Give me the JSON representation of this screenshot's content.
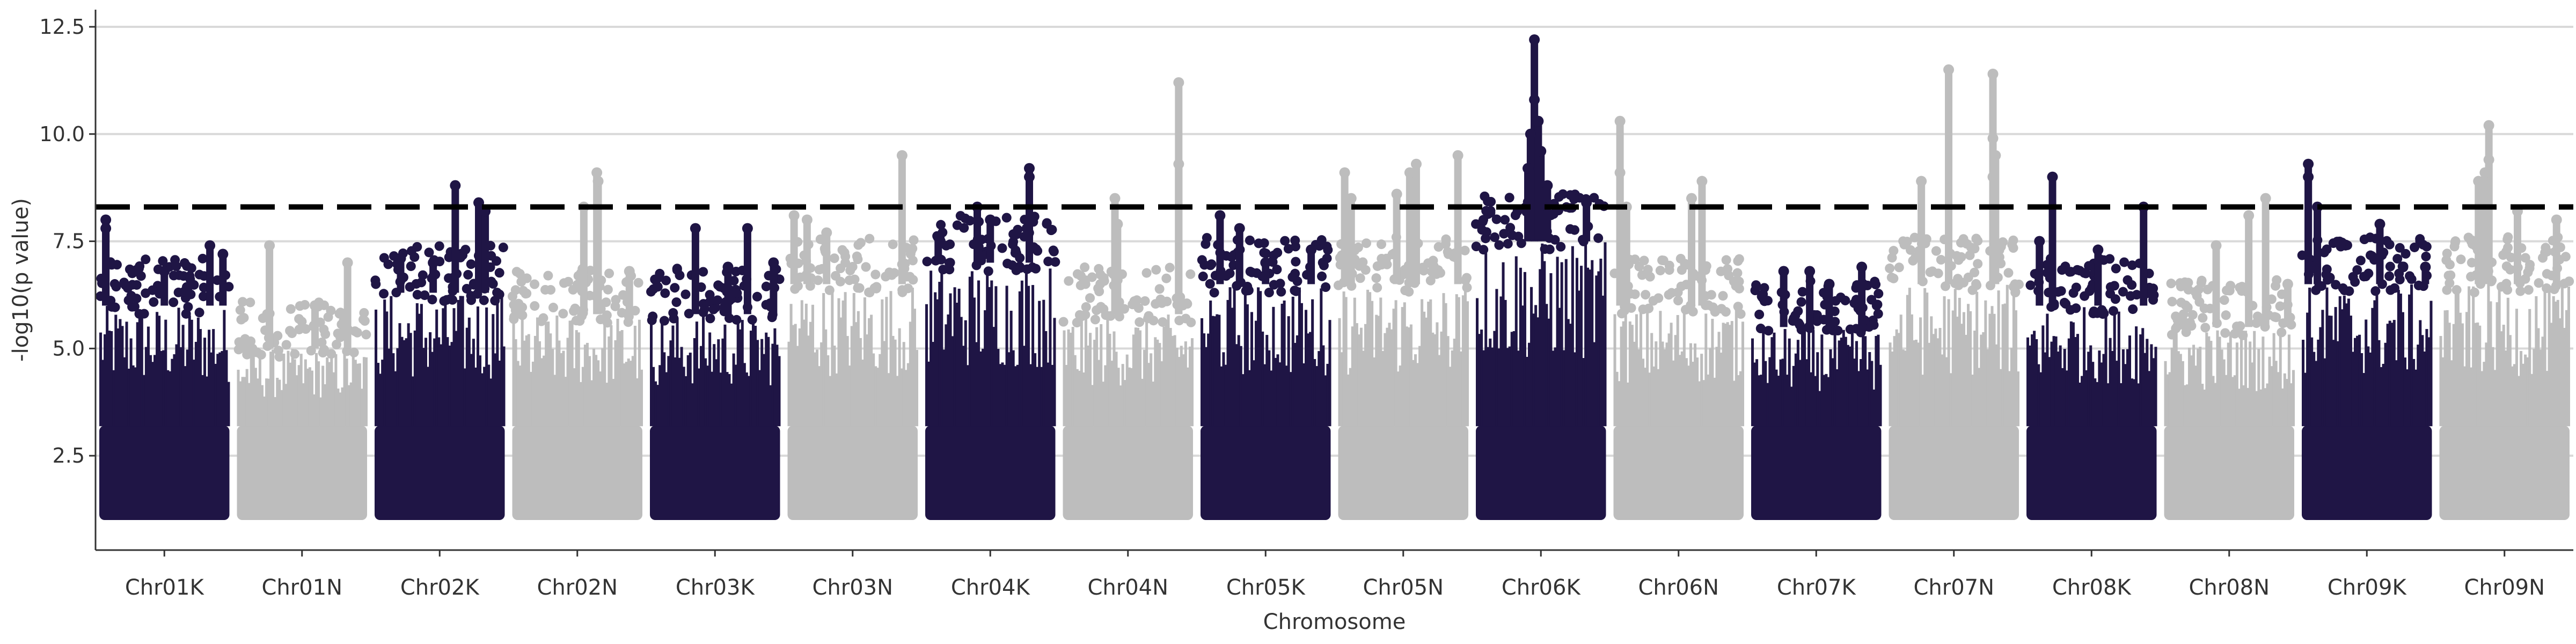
{
  "chart_data": {
    "type": "scatter",
    "subtype": "manhattan",
    "title": "",
    "xlabel": "Chromosome",
    "ylabel": "-log10(p value)",
    "ylim": [
      0,
      12.5
    ],
    "yticks": [
      2.5,
      5.0,
      7.5,
      10.0,
      12.5
    ],
    "ytick_labels": [
      "2.5",
      "5.0",
      "7.5",
      "10.0",
      "12.5"
    ],
    "grid": "horizontal",
    "legend": "none",
    "threshold": 8.3,
    "colors": {
      "dark": "#1f1545",
      "light": "#bdbdbd",
      "threshold": "#000000",
      "grid": "#d9d9d9"
    },
    "categories": [
      "Chr01K",
      "Chr01N",
      "Chr02K",
      "Chr02N",
      "Chr03K",
      "Chr03N",
      "Chr04K",
      "Chr04N",
      "Chr05K",
      "Chr05N",
      "Chr06K",
      "Chr06N",
      "Chr07K",
      "Chr07N",
      "Chr08K",
      "Chr08N",
      "Chr09K",
      "Chr09N"
    ],
    "series": [
      {
        "category": "Chr01K",
        "color": "dark",
        "base_max": 6.0,
        "peaks": [
          [
            0.05,
            8.0
          ],
          [
            0.05,
            7.8
          ],
          [
            0.85,
            7.4
          ],
          [
            0.95,
            7.2
          ],
          [
            0.5,
            6.8
          ]
        ]
      },
      {
        "category": "Chr01N",
        "color": "light",
        "base_max": 5.0,
        "peaks": [
          [
            0.25,
            7.4
          ],
          [
            0.85,
            7.0
          ],
          [
            0.6,
            6.0
          ]
        ]
      },
      {
        "category": "Chr02K",
        "color": "dark",
        "base_max": 6.3,
        "peaks": [
          [
            0.62,
            8.8
          ],
          [
            0.8,
            8.4
          ],
          [
            0.85,
            8.2
          ],
          [
            0.2,
            7.1
          ],
          [
            0.45,
            7.0
          ]
        ]
      },
      {
        "category": "Chr02N",
        "color": "light",
        "base_max": 5.8,
        "peaks": [
          [
            0.65,
            9.1
          ],
          [
            0.66,
            8.9
          ],
          [
            0.55,
            8.3
          ],
          [
            0.9,
            6.8
          ]
        ]
      },
      {
        "category": "Chr03K",
        "color": "dark",
        "base_max": 5.8,
        "peaks": [
          [
            0.35,
            7.8
          ],
          [
            0.75,
            7.8
          ],
          [
            0.95,
            7.0
          ],
          [
            0.6,
            6.9
          ]
        ]
      },
      {
        "category": "Chr03N",
        "color": "light",
        "base_max": 6.5,
        "peaks": [
          [
            0.88,
            9.5
          ],
          [
            0.05,
            8.1
          ],
          [
            0.15,
            8.0
          ],
          [
            0.3,
            7.7
          ]
        ]
      },
      {
        "category": "Chr04K",
        "color": "dark",
        "base_max": 7.0,
        "peaks": [
          [
            0.8,
            9.2
          ],
          [
            0.8,
            9.0
          ],
          [
            0.4,
            8.3
          ],
          [
            0.5,
            8.0
          ],
          [
            0.1,
            7.6
          ]
        ]
      },
      {
        "category": "Chr04N",
        "color": "light",
        "base_max": 5.8,
        "peaks": [
          [
            0.89,
            11.2
          ],
          [
            0.89,
            9.3
          ],
          [
            0.4,
            8.5
          ],
          [
            0.42,
            7.9
          ]
        ]
      },
      {
        "category": "Chr05K",
        "color": "dark",
        "base_max": 6.5,
        "peaks": [
          [
            0.15,
            8.1
          ],
          [
            0.3,
            7.8
          ],
          [
            0.85,
            7.3
          ],
          [
            0.5,
            7.0
          ]
        ]
      },
      {
        "category": "Chr05N",
        "color": "light",
        "base_max": 6.5,
        "peaks": [
          [
            0.92,
            9.5
          ],
          [
            0.6,
            9.3
          ],
          [
            0.55,
            9.1
          ],
          [
            0.05,
            9.1
          ],
          [
            0.1,
            8.5
          ],
          [
            0.45,
            8.6
          ]
        ]
      },
      {
        "category": "Chr06K",
        "color": "dark",
        "base_max": 7.5,
        "peaks": [
          [
            0.45,
            12.2
          ],
          [
            0.45,
            10.8
          ],
          [
            0.48,
            10.3
          ],
          [
            0.42,
            10.0
          ],
          [
            0.5,
            9.6
          ],
          [
            0.4,
            9.2
          ],
          [
            0.55,
            8.8
          ],
          [
            0.85,
            8.4
          ]
        ]
      },
      {
        "category": "Chr06N",
        "color": "light",
        "base_max": 6.0,
        "peaks": [
          [
            0.05,
            10.3
          ],
          [
            0.05,
            9.1
          ],
          [
            0.68,
            8.9
          ],
          [
            0.1,
            8.3
          ],
          [
            0.6,
            8.5
          ]
        ]
      },
      {
        "category": "Chr07K",
        "color": "dark",
        "base_max": 5.5,
        "peaks": [
          [
            0.25,
            6.8
          ],
          [
            0.45,
            6.8
          ],
          [
            0.85,
            6.9
          ],
          [
            0.6,
            6.5
          ]
        ]
      },
      {
        "category": "Chr07N",
        "color": "light",
        "base_max": 6.5,
        "peaks": [
          [
            0.46,
            11.5
          ],
          [
            0.8,
            11.4
          ],
          [
            0.8,
            9.9
          ],
          [
            0.82,
            9.5
          ],
          [
            0.8,
            9.0
          ],
          [
            0.25,
            8.9
          ]
        ]
      },
      {
        "category": "Chr08K",
        "color": "dark",
        "base_max": 6.0,
        "peaks": [
          [
            0.2,
            9.0
          ],
          [
            0.9,
            8.3
          ],
          [
            0.55,
            7.3
          ],
          [
            0.1,
            7.5
          ]
        ]
      },
      {
        "category": "Chr08N",
        "color": "light",
        "base_max": 5.5,
        "peaks": [
          [
            0.78,
            8.5
          ],
          [
            0.65,
            8.1
          ],
          [
            0.4,
            7.4
          ],
          [
            0.95,
            6.5
          ]
        ]
      },
      {
        "category": "Chr09K",
        "color": "dark",
        "base_max": 6.5,
        "peaks": [
          [
            0.05,
            9.3
          ],
          [
            0.05,
            9.0
          ],
          [
            0.12,
            8.3
          ],
          [
            0.6,
            7.9
          ],
          [
            0.95,
            6.9
          ]
        ]
      },
      {
        "category": "Chr09N",
        "color": "light",
        "base_max": 6.5,
        "peaks": [
          [
            0.38,
            10.2
          ],
          [
            0.38,
            9.4
          ],
          [
            0.3,
            8.9
          ],
          [
            0.35,
            9.1
          ],
          [
            0.9,
            8.0
          ],
          [
            0.6,
            8.2
          ]
        ]
      }
    ]
  }
}
